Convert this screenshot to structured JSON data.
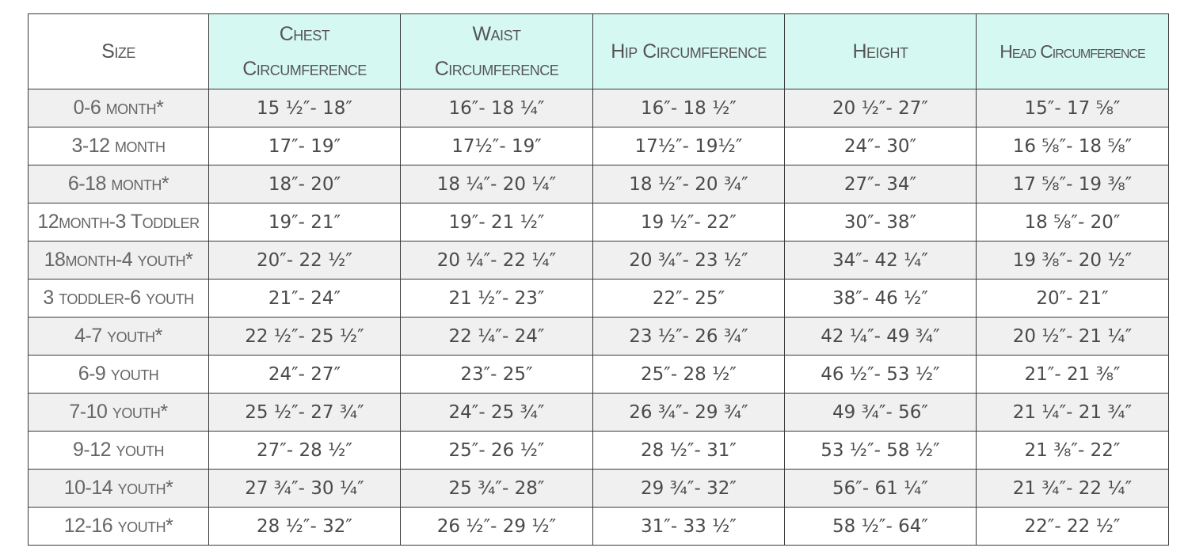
{
  "table": {
    "headers": [
      "Size",
      "Chest Circumference",
      "Waist Circumference",
      "Hip Circumference",
      "Height",
      "Head Circumference"
    ],
    "rows": [
      [
        "0-6 month*",
        "15 ½″- 18″",
        "16″- 18 ¼″",
        "16″- 18 ½″",
        "20 ½″- 27″",
        "15″- 17 ⅝″"
      ],
      [
        "3-12 month",
        "17″- 19″",
        "17½″- 19″",
        "17½″- 19½″",
        "24″- 30″",
        "16 ⅝″- 18 ⅝″"
      ],
      [
        "6-18 month*",
        "18″- 20″",
        "18 ¼″- 20 ¼″",
        "18 ½″- 20 ¾″",
        "27″- 34″",
        "17 ⅝″- 19 ⅜″"
      ],
      [
        "12month-3 Toddler",
        "19″- 21″",
        "19″- 21 ½″",
        "19 ½″- 22″",
        "30″- 38″",
        "18 ⅝″- 20″"
      ],
      [
        "18month-4 youth*",
        "20″- 22 ½″",
        "20 ¼″- 22 ¼″",
        "20 ¾″- 23 ½″",
        "34″- 42 ¼″",
        "19 ⅜″- 20 ½″"
      ],
      [
        "3 toddler-6 youth",
        "21″- 24″",
        "21 ½″- 23″",
        "22″- 25″",
        "38″- 46 ½″",
        "20″- 21″"
      ],
      [
        "4-7 youth*",
        "22 ½″- 25 ½″",
        "22 ¼″- 24″",
        "23 ½″- 26 ¾″",
        "42 ¼″- 49 ¾″",
        "20 ½″- 21 ¼″"
      ],
      [
        "6-9 youth",
        "24″- 27″",
        "23″- 25″",
        "25″- 28 ½″",
        "46 ½″- 53 ½″",
        "21″- 21 ⅜″"
      ],
      [
        "7-10 youth*",
        "25 ½″- 27 ¾″",
        "24″- 25 ¾″",
        "26 ¾″- 29 ¾″",
        "49 ¾″- 56″",
        "21 ¼″- 21 ¾″"
      ],
      [
        "9-12 youth",
        "27″- 28 ½″",
        "25″- 26 ½″",
        "28 ½″- 31″",
        "53 ½″- 58 ½″",
        "21 ⅜″- 22″"
      ],
      [
        "10-14 youth*",
        "27 ¾″- 30 ¼″",
        "25 ¾″- 28″",
        "29 ¾″- 32″",
        "56″- 61 ¼″",
        "21 ¾″- 22 ¼″"
      ],
      [
        "12-16 youth*",
        "28 ½″- 32″",
        "26 ½″- 29 ½″",
        "31″- 33 ½″",
        "58 ½″- 64″",
        "22″- 22 ½″"
      ]
    ]
  }
}
